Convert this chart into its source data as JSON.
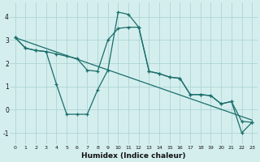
{
  "xlabel": "Humidex (Indice chaleur)",
  "background_color": "#d4eeee",
  "grid_color": "#aed4d4",
  "line_color": "#1a6e6a",
  "xlim": [
    -0.5,
    23.5
  ],
  "ylim": [
    -1.5,
    4.6
  ],
  "yticks": [
    -1,
    0,
    1,
    2,
    3,
    4
  ],
  "x_ticks": [
    0,
    1,
    2,
    3,
    4,
    5,
    6,
    7,
    8,
    9,
    10,
    11,
    12,
    13,
    14,
    15,
    16,
    17,
    18,
    19,
    20,
    21,
    22,
    23
  ],
  "line1_x": [
    0,
    1,
    2,
    3,
    4,
    5,
    6,
    7,
    8,
    9,
    10,
    11,
    12,
    13,
    14,
    15,
    16,
    17,
    18,
    19,
    20,
    21,
    22,
    23
  ],
  "line1_y": [
    3.1,
    2.65,
    2.55,
    2.5,
    1.1,
    -0.2,
    -0.2,
    -0.2,
    0.85,
    1.7,
    4.2,
    4.1,
    3.55,
    1.65,
    1.55,
    1.4,
    1.35,
    0.65,
    0.65,
    0.6,
    0.25,
    0.35,
    -1.0,
    -0.55
  ],
  "line2_x": [
    0,
    23
  ],
  "line2_y": [
    3.1,
    -0.45
  ],
  "line3_x": [
    0,
    1,
    2,
    3,
    4,
    5,
    6,
    7,
    8,
    9,
    10,
    11,
    12,
    13,
    14,
    15,
    16,
    17,
    18,
    19,
    20,
    21,
    22,
    23
  ],
  "line3_y": [
    3.1,
    2.65,
    2.55,
    2.5,
    2.4,
    2.3,
    2.2,
    1.7,
    1.65,
    3.0,
    3.5,
    3.55,
    3.55,
    1.65,
    1.55,
    1.4,
    1.35,
    0.65,
    0.65,
    0.6,
    0.25,
    0.35,
    -0.5,
    -0.55
  ]
}
